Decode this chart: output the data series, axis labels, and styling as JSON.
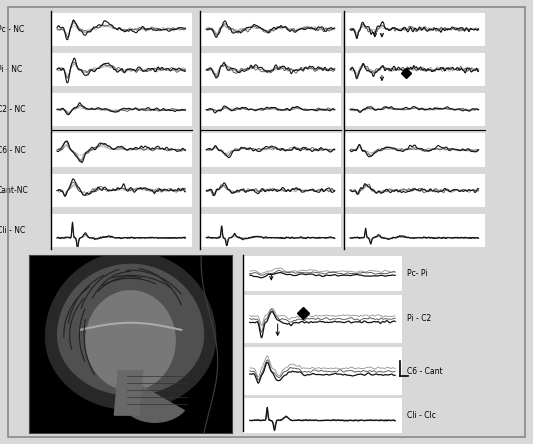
{
  "background_color": "#d8d8d8",
  "white": "#ffffff",
  "black": "#000000",
  "top_labels": [
    "Pc - NC",
    "Pi - NC",
    "C2 - NC",
    "C6 - NC",
    "Cant-NC",
    "Cli - NC"
  ],
  "bottom_right_labels": [
    "Pc- Pi",
    "Pi - C2",
    "C6 - Cant",
    "Cli - Clc"
  ],
  "lc0": "#111111",
  "lc1": "#555555",
  "lc2": "#999999",
  "lc3": "#bbbbbb",
  "n_points": 300,
  "seed": 7
}
